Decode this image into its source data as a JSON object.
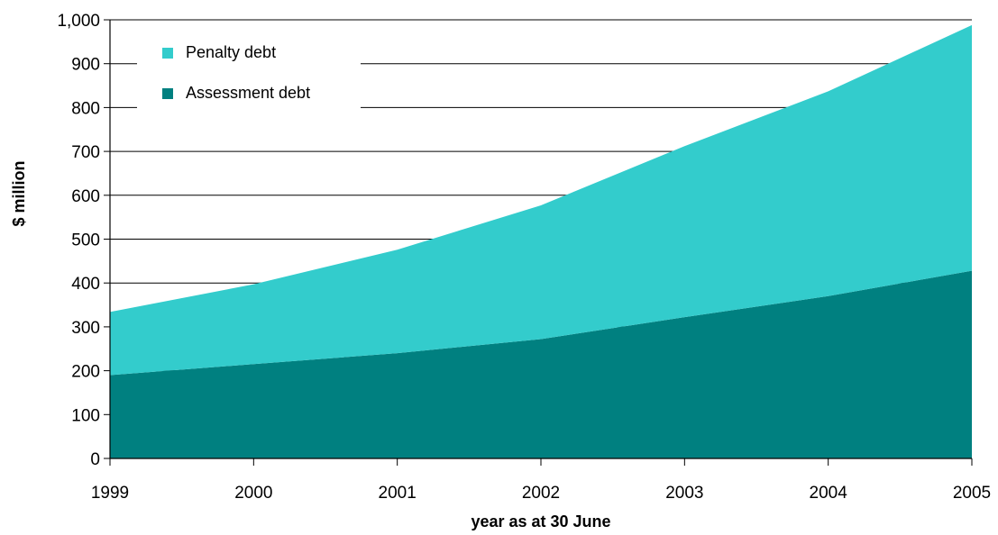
{
  "chart_data": {
    "type": "area",
    "stacked": true,
    "title": "",
    "xlabel": "year as at 30 June",
    "ylabel": "$ million",
    "categories": [
      "1999",
      "2000",
      "2001",
      "2002",
      "2003",
      "2004",
      "2005"
    ],
    "ylim": [
      0,
      1000
    ],
    "yticks": [
      "0",
      "100",
      "200",
      "300",
      "400",
      "500",
      "600",
      "700",
      "800",
      "900",
      "1,000"
    ],
    "grid": "horizontal",
    "legend_position": "top-left",
    "series": [
      {
        "name": "Assessment debt",
        "color": "#008080",
        "values": [
          190,
          215,
          240,
          272,
          322,
          370,
          428
        ]
      },
      {
        "name": "Penalty debt",
        "color": "#33CCCC",
        "values": [
          144,
          182,
          236,
          305,
          390,
          467,
          560
        ]
      }
    ],
    "legend": [
      {
        "label": "Penalty debt",
        "color": "#33CCCC"
      },
      {
        "label": "Assessment debt",
        "color": "#008080"
      }
    ]
  }
}
